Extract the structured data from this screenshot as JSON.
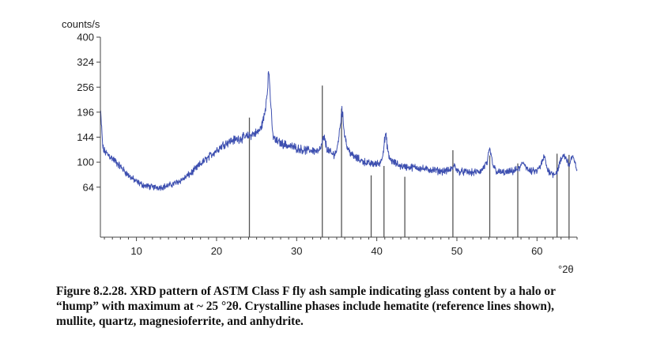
{
  "chart_data": {
    "type": "line",
    "title": "",
    "xlabel": "°2θ",
    "ylabel": "counts/s",
    "xlim": [
      5.5,
      65
    ],
    "ylim": [
      16,
      400
    ],
    "y_scale": "sqrt",
    "x_ticks": [
      10,
      20,
      30,
      40,
      50,
      60
    ],
    "y_ticks": [
      64,
      100,
      144,
      196,
      256,
      324,
      400
    ],
    "grid": false,
    "legend": "none",
    "colors": {
      "pattern": "#3d4fb0",
      "reference": "#555555",
      "axis": "#444444"
    },
    "series": [
      {
        "x": [
          5.5,
          5.8,
          6,
          6.5,
          7,
          8,
          9,
          10,
          11,
          12,
          13,
          14,
          15,
          16,
          17,
          18,
          19,
          20,
          21,
          22,
          23,
          24,
          24.5,
          25,
          25.5,
          26,
          26.3,
          26.5,
          26.65,
          26.8,
          27,
          27.3,
          28,
          29,
          30,
          31,
          32,
          32.8,
          33.1,
          33.4,
          33.8,
          34.5,
          35,
          35.4,
          35.65,
          35.9,
          36.3,
          37,
          38,
          39,
          40,
          40.5,
          40.8,
          41.1,
          41.5,
          42,
          43,
          44,
          45,
          46,
          47,
          48,
          49,
          49.4,
          49.7,
          50.1,
          51,
          52,
          53,
          53.8,
          54.1,
          54.5,
          55,
          56,
          57,
          57.8,
          58.3,
          59,
          60,
          60.5,
          60.9,
          61.3,
          62,
          62.5,
          62.9,
          63.3,
          63.7,
          64,
          64.4,
          64.8,
          65
        ],
        "y": [
          200,
          125,
          118,
          112,
          106,
          93,
          80,
          71,
          66,
          64,
          64,
          66,
          70,
          76,
          85,
          97,
          108,
          120,
          132,
          138,
          142,
          146,
          150,
          152,
          160,
          190,
          240,
          300,
          260,
          200,
          150,
          138,
          133,
          128,
          124,
          120,
          120,
          118,
          128,
          145,
          122,
          112,
          118,
          160,
          205,
          160,
          125,
          110,
          103,
          98,
          97,
          100,
          118,
          150,
          108,
          100,
          94,
          92,
          92,
          89,
          88,
          86,
          87,
          90,
          95,
          86,
          85,
          84,
          86,
          100,
          122,
          95,
          85,
          84,
          86,
          90,
          100,
          86,
          86,
          95,
          110,
          88,
          82,
          85,
          100,
          112,
          105,
          95,
          110,
          95,
          90
        ]
      }
    ],
    "reference_lines": {
      "x": [
        24.1,
        33.2,
        35.6,
        39.3,
        40.9,
        43.5,
        49.5,
        54.1,
        57.6,
        62.5,
        64.0
      ],
      "y": [
        184,
        260,
        204,
        80,
        94,
        78,
        120,
        111,
        98,
        114,
        112
      ]
    }
  },
  "caption": {
    "line1": "Figure 8.2.28. XRD pattern of ASTM Class F fly ash sample indicating glass content by a halo or",
    "line2": "“hump” with maximum at ~ 25 °2θ. Crystalline phases include hematite (reference lines shown),",
    "line3": "mullite, quartz, magnesioferrite, and anhydrite."
  }
}
